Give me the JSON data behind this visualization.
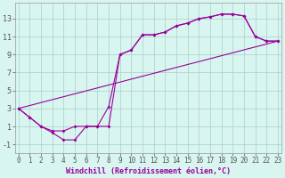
{
  "bg_color": "#d8f5f0",
  "line_color": "#990099",
  "xlim": [
    -0.5,
    23.5
  ],
  "ylim": [
    -2,
    14.5
  ],
  "xticks": [
    0,
    1,
    2,
    3,
    4,
    5,
    6,
    7,
    8,
    9,
    10,
    11,
    12,
    13,
    14,
    15,
    16,
    17,
    18,
    19,
    20,
    21,
    22,
    23
  ],
  "yticks": [
    -1,
    1,
    3,
    5,
    7,
    9,
    11,
    13
  ],
  "grid_color": "#aacfca",
  "xlabel": "Windchill (Refroidissement éolien,°C)",
  "line1_x": [
    0,
    1,
    2,
    3,
    4,
    5,
    6,
    7,
    8,
    9,
    10,
    11,
    12,
    13,
    14,
    15,
    16,
    17,
    18,
    19,
    20,
    21,
    22,
    23
  ],
  "line1_y": [
    3.0,
    2.0,
    1.0,
    0.5,
    0.5,
    1.0,
    1.0,
    1.0,
    3.2,
    9.0,
    9.5,
    11.2,
    11.2,
    11.5,
    12.2,
    12.5,
    13.0,
    13.2,
    13.5,
    13.5,
    13.3,
    11.0,
    10.5,
    10.5
  ],
  "line2_x": [
    0,
    1,
    2,
    3,
    4,
    5,
    6,
    7,
    8,
    9,
    10,
    11,
    12,
    13,
    14,
    15,
    16,
    17,
    18,
    19,
    20,
    21,
    22,
    23
  ],
  "line2_y": [
    3.0,
    2.0,
    1.0,
    0.3,
    -0.5,
    -0.5,
    1.0,
    1.0,
    1.0,
    9.0,
    9.5,
    11.2,
    11.2,
    11.5,
    12.2,
    12.5,
    13.0,
    13.2,
    13.5,
    13.5,
    13.3,
    11.0,
    10.5,
    10.5
  ],
  "line3_x": [
    0,
    23
  ],
  "line3_y": [
    3.0,
    10.5
  ],
  "xlabel_fontsize": 6,
  "tick_fontsize": 5.5,
  "xlabel_color": "#990099",
  "tick_color": "#555555"
}
